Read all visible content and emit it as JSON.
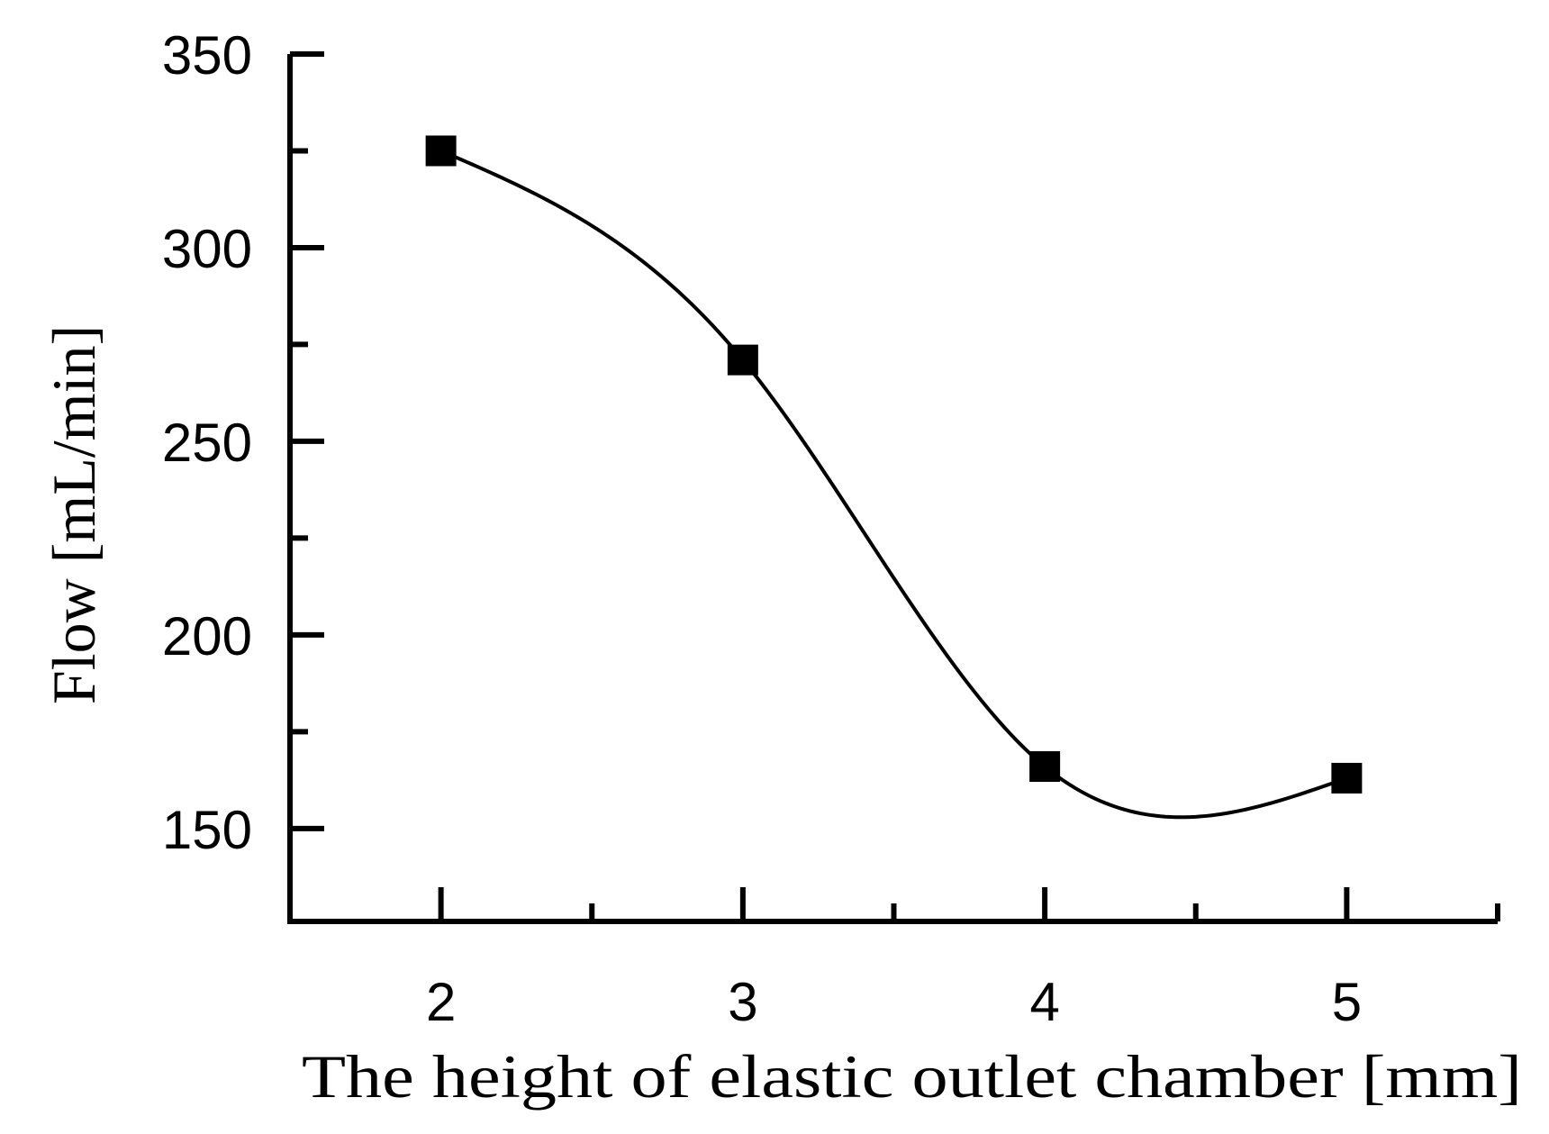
{
  "chart_data": {
    "type": "line",
    "xlabel": "The height of elastic outlet chamber  [mm]",
    "ylabel": "Flow [mL/min]",
    "xlim": [
      1.5,
      5.5
    ],
    "ylim": [
      126,
      350
    ],
    "x_ticks": [
      2,
      3,
      4,
      5
    ],
    "x_minor_ticks": [
      2.5,
      3.5,
      4.5
    ],
    "y_ticks": [
      150,
      200,
      250,
      300,
      350
    ],
    "y_minor_ticks": [
      175,
      225,
      275,
      325
    ],
    "grid": false,
    "series": [
      {
        "x": [
          2,
          3,
          4,
          5
        ],
        "y": [
          325,
          271,
          166,
          163
        ],
        "marker": "square",
        "smooth": true
      }
    ],
    "colors": {
      "line": "#000000",
      "marker": "#000000",
      "axis": "#000000"
    }
  }
}
